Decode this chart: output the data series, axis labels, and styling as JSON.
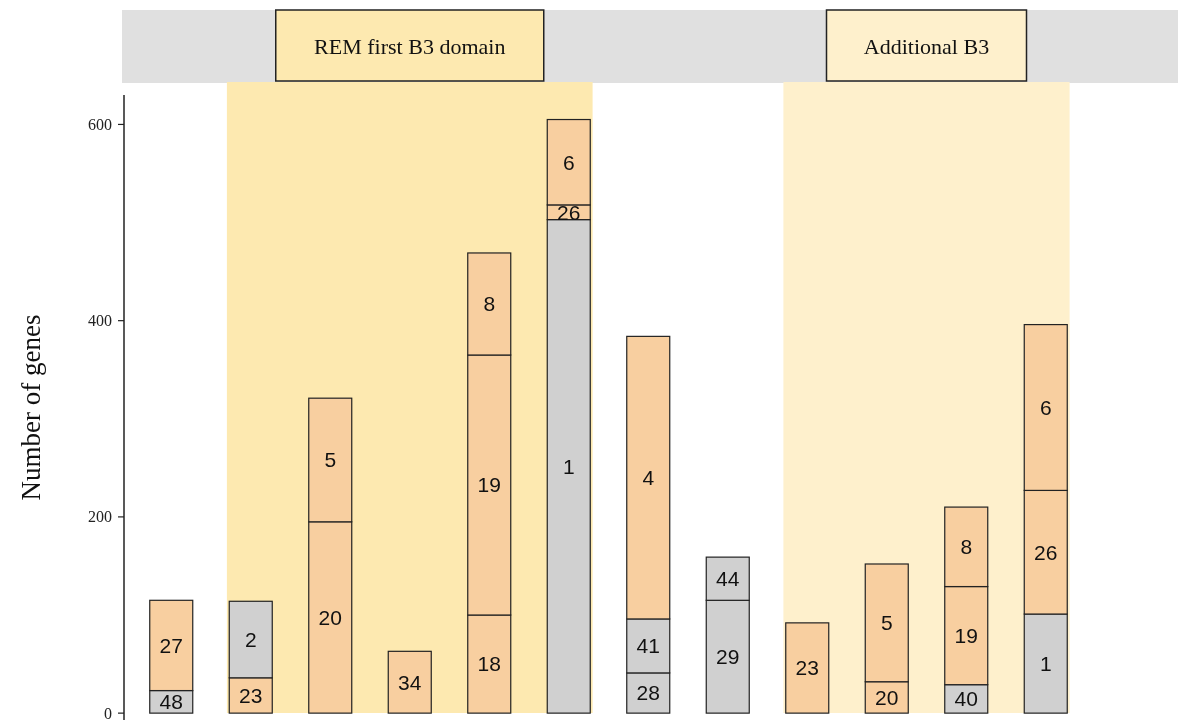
{
  "chart_data": {
    "type": "bar",
    "stacked": true,
    "ylabel": "Number of genes",
    "categories": [
      null,
      null,
      null,
      null,
      null,
      null,
      null,
      null,
      null,
      null,
      null,
      null
    ],
    "ylim": [
      -7,
      630
    ],
    "yticks": [
      0,
      200,
      400,
      600
    ],
    "tick_labels": "y",
    "annotations": [
      "REM first B3 domain",
      "Additional B3"
    ],
    "series": [
      {
        "name": "48",
        "color": "#d0d0d0",
        "values": [
          23,
          null,
          null,
          null,
          null,
          null,
          null,
          null,
          null,
          null,
          null,
          null
        ]
      },
      {
        "name": "27",
        "color": "#f8cfa0",
        "values": [
          92,
          null,
          null,
          null,
          null,
          null,
          null,
          null,
          null,
          null,
          null,
          null
        ]
      },
      {
        "name": "23",
        "color": "#f8cfa0",
        "values": [
          null,
          36,
          null,
          null,
          null,
          null,
          null,
          null,
          92,
          null,
          null,
          null
        ]
      },
      {
        "name": "2",
        "color": "#d0d0d0",
        "values": [
          null,
          78,
          null,
          null,
          null,
          null,
          null,
          null,
          null,
          null,
          null,
          null
        ]
      },
      {
        "name": "20",
        "color": "#f8cfa0",
        "values": [
          null,
          null,
          195,
          null,
          null,
          null,
          null,
          null,
          null,
          32,
          null,
          null
        ]
      },
      {
        "name": "5",
        "color": "#f8cfa0",
        "values": [
          null,
          null,
          126,
          null,
          null,
          null,
          null,
          null,
          null,
          120,
          null,
          null
        ]
      },
      {
        "name": "34",
        "color": "#f8cfa0",
        "values": [
          null,
          null,
          null,
          63,
          null,
          null,
          null,
          null,
          null,
          null,
          null,
          null
        ]
      },
      {
        "name": "18",
        "color": "#f8cfa0",
        "values": [
          null,
          null,
          null,
          null,
          100,
          null,
          null,
          null,
          null,
          null,
          null,
          null
        ]
      },
      {
        "name": "40",
        "color": "#d0d0d0",
        "values": [
          null,
          null,
          null,
          null,
          null,
          null,
          null,
          null,
          null,
          null,
          29,
          null
        ]
      },
      {
        "name": "19",
        "color": "#f8cfa0",
        "values": [
          null,
          null,
          null,
          null,
          265,
          null,
          null,
          null,
          null,
          null,
          100,
          null
        ]
      },
      {
        "name": "8",
        "color": "#f8cfa0",
        "values": [
          null,
          null,
          null,
          null,
          104,
          null,
          null,
          null,
          null,
          null,
          81,
          null
        ]
      },
      {
        "name": "1",
        "color": "#d0d0d0",
        "values": [
          null,
          null,
          null,
          null,
          null,
          503,
          null,
          null,
          null,
          null,
          null,
          101
        ]
      },
      {
        "name": "26",
        "color": "#f8cfa0",
        "values": [
          null,
          null,
          null,
          null,
          null,
          15,
          null,
          null,
          null,
          null,
          null,
          126
        ]
      },
      {
        "name": "6",
        "color": "#f8cfa0",
        "values": [
          null,
          null,
          null,
          null,
          null,
          87,
          null,
          null,
          null,
          null,
          null,
          169
        ]
      },
      {
        "name": "28",
        "color": "#d0d0d0",
        "values": [
          null,
          null,
          null,
          null,
          null,
          null,
          41,
          null,
          null,
          null,
          null,
          null
        ]
      },
      {
        "name": "41",
        "color": "#d0d0d0",
        "values": [
          null,
          null,
          null,
          null,
          null,
          null,
          55,
          null,
          null,
          null,
          null,
          null
        ]
      },
      {
        "name": "4",
        "color": "#f8cfa0",
        "values": [
          null,
          null,
          null,
          null,
          null,
          null,
          288,
          null,
          null,
          null,
          null,
          null
        ]
      },
      {
        "name": "29",
        "color": "#d0d0d0",
        "values": [
          null,
          null,
          null,
          null,
          null,
          null,
          null,
          115,
          null,
          null,
          null,
          null
        ]
      },
      {
        "name": "44",
        "color": "#d0d0d0",
        "values": [
          null,
          null,
          null,
          null,
          null,
          null,
          null,
          44,
          null,
          null,
          null,
          null
        ]
      }
    ]
  }
}
